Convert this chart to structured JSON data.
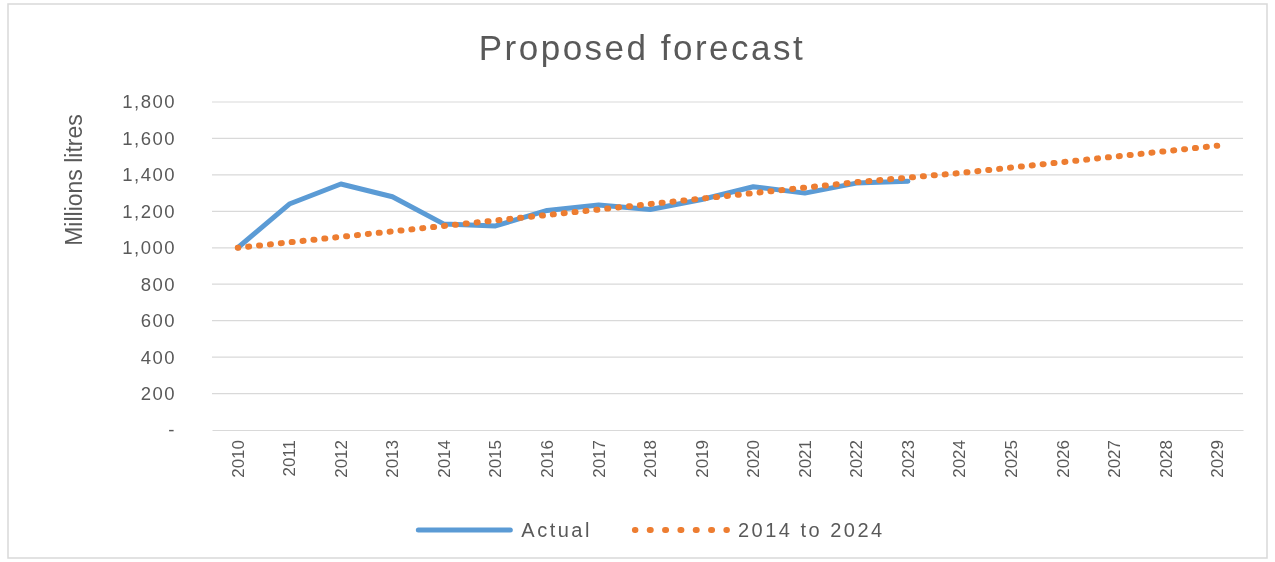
{
  "chart_data": {
    "type": "line",
    "title": "Proposed forecast",
    "ylabel": "Millions litres",
    "categories": [
      "2010",
      "2011",
      "2012",
      "2013",
      "2014",
      "2015",
      "2016",
      "2017",
      "2018",
      "2019",
      "2020",
      "2021",
      "2022",
      "2023",
      "2024",
      "2025",
      "2026",
      "2027",
      "2028",
      "2029"
    ],
    "series": [
      {
        "name": "Actual",
        "color": "#5b9bd5",
        "line_style": "solid",
        "values": [
          1000,
          1240,
          1350,
          1280,
          1130,
          1120,
          1205,
          1235,
          1210,
          1265,
          1335,
          1300,
          1355,
          1365,
          null,
          null,
          null,
          null,
          null,
          null
        ]
      },
      {
        "name": "2014 to 2024",
        "color": "#ed7d31",
        "line_style": "dotted",
        "values": [
          1000,
          1030,
          1060,
          1090,
          1120,
          1150,
          1180,
          1210,
          1240,
          1270,
          1300,
          1330,
          1360,
          1385,
          1410,
          1440,
          1470,
          1500,
          1530,
          1560
        ]
      }
    ],
    "ylim": [
      0,
      1800
    ],
    "yticks": [
      {
        "value": 0,
        "label": "-"
      },
      {
        "value": 200,
        "label": "200"
      },
      {
        "value": 400,
        "label": "400"
      },
      {
        "value": 600,
        "label": "600"
      },
      {
        "value": 800,
        "label": "800"
      },
      {
        "value": 1000,
        "label": "1,000"
      },
      {
        "value": 1200,
        "label": "1,200"
      },
      {
        "value": 1400,
        "label": "1,400"
      },
      {
        "value": 1600,
        "label": "1,600"
      },
      {
        "value": 1800,
        "label": "1,800"
      }
    ],
    "grid": "y",
    "legend": "bottom",
    "marker": "none"
  }
}
